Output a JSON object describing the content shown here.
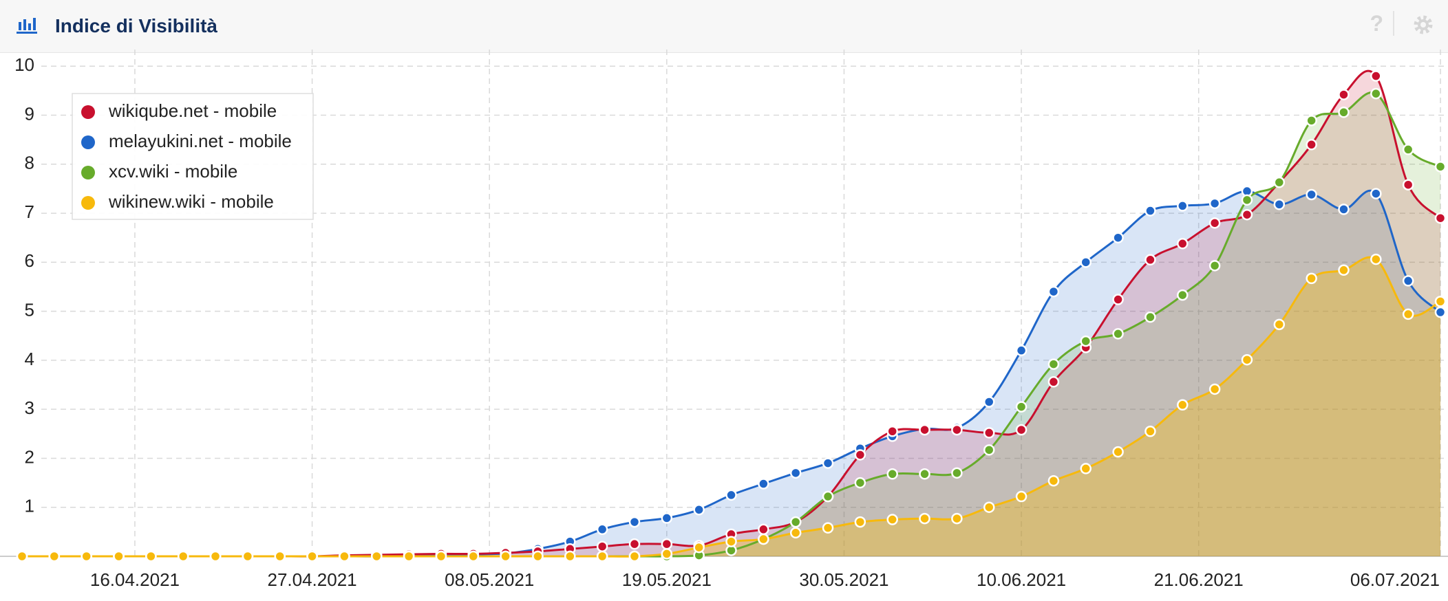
{
  "header": {
    "title": "Indice di Visibilità",
    "help": "?"
  },
  "chart_data": {
    "type": "area",
    "x": [
      "09.04.2021",
      "11.04.2021",
      "13.04.2021",
      "15.04.2021",
      "17.04.2021",
      "19.04.2021",
      "21.04.2021",
      "23.04.2021",
      "25.04.2021",
      "27.04.2021",
      "29.04.2021",
      "01.05.2021",
      "03.05.2021",
      "05.05.2021",
      "07.05.2021",
      "09.05.2021",
      "11.05.2021",
      "13.05.2021",
      "15.05.2021",
      "17.05.2021",
      "19.05.2021",
      "21.05.2021",
      "23.05.2021",
      "25.05.2021",
      "27.05.2021",
      "29.05.2021",
      "31.05.2021",
      "02.06.2021",
      "04.06.2021",
      "06.06.2021",
      "08.06.2021",
      "10.06.2021",
      "12.06.2021",
      "14.06.2021",
      "16.06.2021",
      "18.06.2021",
      "20.06.2021",
      "22.06.2021",
      "24.06.2021",
      "26.06.2021",
      "28.06.2021",
      "30.06.2021",
      "02.07.2021",
      "04.07.2021",
      "06.07.2021"
    ],
    "series": [
      {
        "name": "wikiqube.net - mobile",
        "color": "#c8102e",
        "values": [
          0,
          0,
          0,
          0,
          0,
          0,
          0,
          0,
          0,
          0,
          0.02,
          0.03,
          0.04,
          0.05,
          0.05,
          0.07,
          0.1,
          0.15,
          0.2,
          0.25,
          0.25,
          0.22,
          0.45,
          0.55,
          0.7,
          1.22,
          2.07,
          2.55,
          2.58,
          2.58,
          2.52,
          2.58,
          3.56,
          4.26,
          5.24,
          6.05,
          6.38,
          6.8,
          6.97,
          7.63,
          8.4,
          9.42,
          9.8,
          7.58,
          6.9
        ]
      },
      {
        "name": "melayukini.net - mobile",
        "color": "#1f66c9",
        "values": [
          0,
          0,
          0,
          0,
          0,
          0,
          0,
          0,
          0,
          0,
          0,
          0,
          0.02,
          0.03,
          0.04,
          0.06,
          0.15,
          0.3,
          0.55,
          0.7,
          0.78,
          0.95,
          1.25,
          1.48,
          1.7,
          1.9,
          2.2,
          2.45,
          2.6,
          2.62,
          3.15,
          4.2,
          5.4,
          6.0,
          6.5,
          7.05,
          7.15,
          7.2,
          7.45,
          7.18,
          7.38,
          7.08,
          7.4,
          5.62,
          4.98
        ]
      },
      {
        "name": "xcv.wiki - mobile",
        "color": "#67ab2b",
        "values": [
          0,
          0,
          0,
          0,
          0,
          0,
          0,
          0,
          0,
          0,
          0,
          0,
          0,
          0,
          0,
          0,
          0,
          0,
          0,
          0,
          0,
          0.02,
          0.12,
          0.35,
          0.7,
          1.22,
          1.5,
          1.68,
          1.68,
          1.7,
          2.17,
          3.05,
          3.92,
          4.39,
          4.54,
          4.88,
          5.33,
          5.93,
          7.27,
          7.63,
          8.89,
          9.06,
          9.44,
          8.3,
          7.95
        ]
      },
      {
        "name": "wikinew.wiki - mobile",
        "color": "#f7b90c",
        "values": [
          0,
          0,
          0,
          0,
          0,
          0,
          0,
          0,
          0,
          0,
          0,
          0,
          0,
          0,
          0,
          0,
          0,
          0,
          0,
          0,
          0.05,
          0.18,
          0.3,
          0.35,
          0.48,
          0.58,
          0.7,
          0.75,
          0.77,
          0.77,
          1.0,
          1.22,
          1.54,
          1.79,
          2.13,
          2.55,
          3.09,
          3.41,
          4.01,
          4.73,
          5.67,
          5.84,
          6.06,
          4.94,
          5.2
        ]
      }
    ],
    "ylim": [
      0,
      10.2
    ],
    "yticks": [
      1,
      2,
      3,
      4,
      5,
      6,
      7,
      8,
      9,
      10
    ],
    "xticks": [
      "16.04.2021",
      "27.04.2021",
      "08.05.2021",
      "19.05.2021",
      "30.05.2021",
      "10.06.2021",
      "21.06.2021",
      "06.07.2021"
    ],
    "grid": true,
    "legend": "top-left"
  }
}
